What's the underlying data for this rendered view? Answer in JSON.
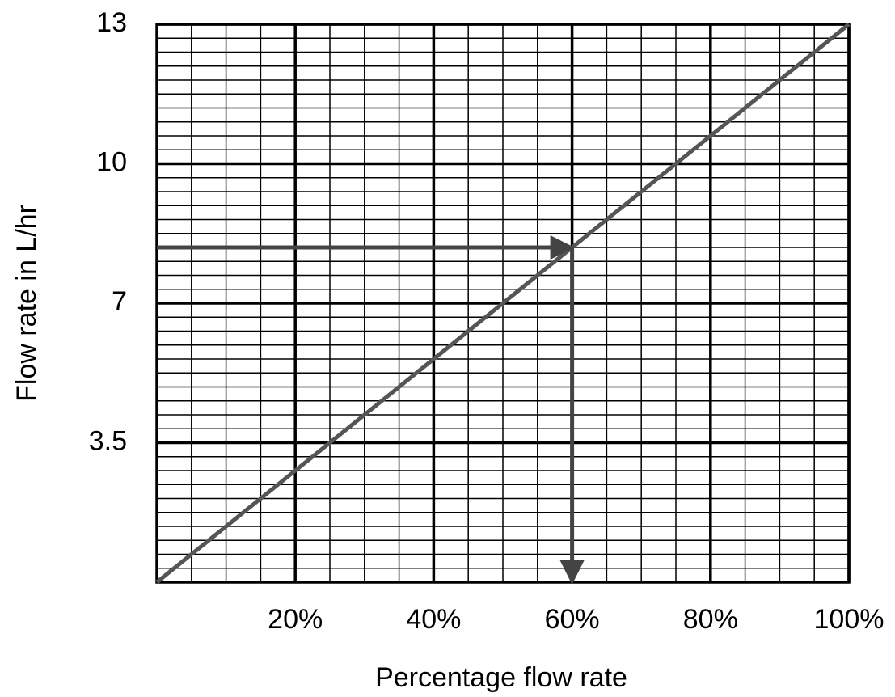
{
  "chart_data": {
    "type": "line",
    "xlabel": "Percentage flow rate",
    "ylabel": "Flow rate in L/hr",
    "x": [
      0,
      100
    ],
    "series": [
      {
        "color": "#555555",
        "values": [
          0,
          13
        ]
      }
    ],
    "xlim": [
      0,
      100
    ],
    "xticks": [
      {
        "value": 20,
        "label": "20%"
      },
      {
        "value": 40,
        "label": "40%"
      },
      {
        "value": 60,
        "label": "60%"
      },
      {
        "value": 80,
        "label": "80%"
      },
      {
        "value": 100,
        "label": "100%"
      }
    ],
    "ylim": [
      0,
      13
    ],
    "yticks": [
      3.5,
      7,
      10,
      13
    ],
    "y_scale": "equal-tick-segments",
    "grid": true,
    "minor_grid": {
      "x": 4,
      "y": 10
    },
    "annotations": [
      {
        "x": 60,
        "y": 8.2,
        "color": "#444444"
      }
    ]
  }
}
